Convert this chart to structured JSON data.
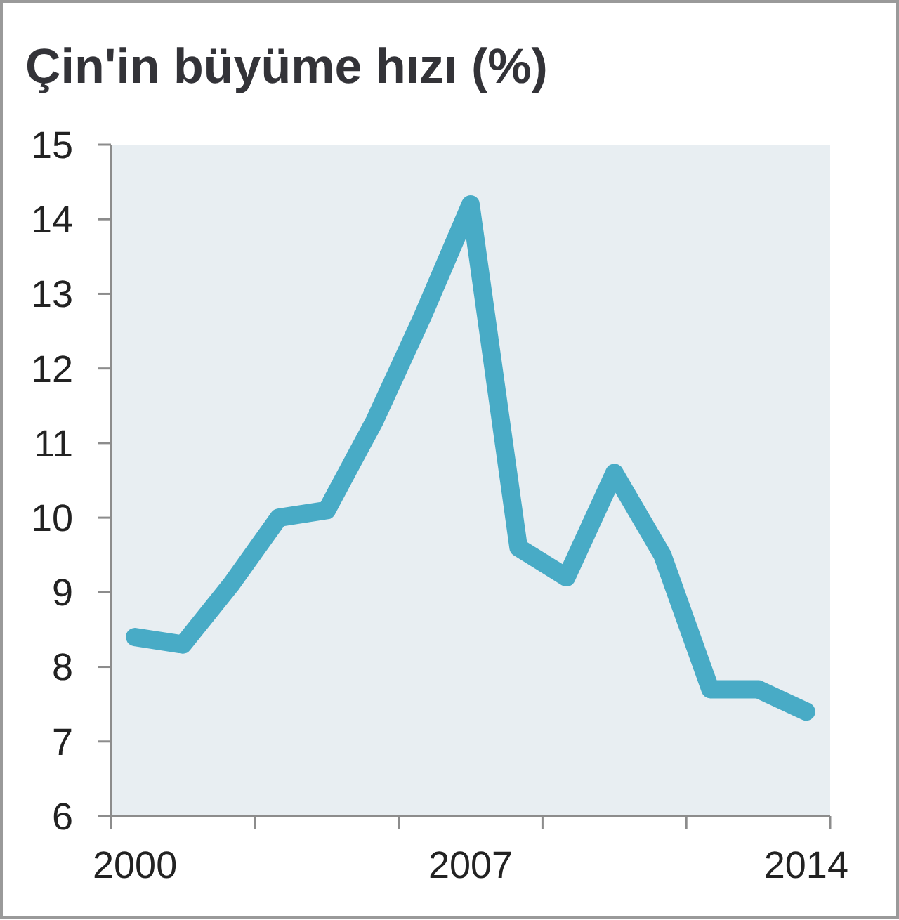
{
  "chart_data": {
    "type": "line",
    "title": "Çin'in büyüme hızı (%)",
    "x": [
      2000,
      2001,
      2002,
      2003,
      2004,
      2005,
      2006,
      2007,
      2008,
      2009,
      2010,
      2011,
      2012,
      2013,
      2014
    ],
    "values": [
      8.4,
      8.3,
      9.1,
      10.0,
      10.1,
      11.3,
      12.7,
      14.2,
      9.6,
      9.2,
      10.6,
      9.5,
      7.7,
      7.7,
      7.4
    ],
    "color": "#48abc6",
    "xlim": [
      1999.5,
      2014.5
    ],
    "xticks": [
      {
        "value": 1999.5,
        "label": null
      },
      2000,
      {
        "value": 2002.5,
        "label": null
      },
      {
        "value": 2005.5,
        "label": null
      },
      2007,
      {
        "value": 2008.5,
        "label": null
      },
      {
        "value": 2011.5,
        "label": null
      },
      2014,
      {
        "value": 2014.5,
        "label": null
      }
    ],
    "ylim": [
      6,
      15
    ],
    "yticks": [
      6,
      7,
      8,
      9,
      10,
      11,
      12,
      13,
      14,
      15
    ],
    "marker": "none",
    "line_style": "solid"
  }
}
